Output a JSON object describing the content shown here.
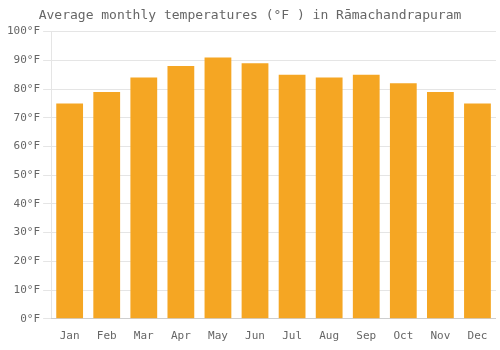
{
  "chart_data": {
    "type": "bar",
    "title": "Average monthly temperatures (°F ) in Rāmachandrapuram",
    "categories": [
      "Jan",
      "Feb",
      "Mar",
      "Apr",
      "May",
      "Jun",
      "Jul",
      "Aug",
      "Sep",
      "Oct",
      "Nov",
      "Dec"
    ],
    "values": [
      75,
      79,
      84,
      88,
      91,
      89,
      85,
      84,
      85,
      82,
      79,
      75
    ],
    "color": "#F5A623",
    "ylim": [
      0,
      100
    ],
    "yticks": [
      {
        "value": 0,
        "label": "0°F"
      },
      {
        "value": 10,
        "label": "10°F"
      },
      {
        "value": 20,
        "label": "20°F"
      },
      {
        "value": 30,
        "label": "30°F"
      },
      {
        "value": 40,
        "label": "40°F"
      },
      {
        "value": 50,
        "label": "50°F"
      },
      {
        "value": 60,
        "label": "60°F"
      },
      {
        "value": 70,
        "label": "70°F"
      },
      {
        "value": 80,
        "label": "80°F"
      },
      {
        "value": 90,
        "label": "90°F"
      },
      {
        "value": 100,
        "label": "100°F"
      }
    ],
    "grid": true
  }
}
